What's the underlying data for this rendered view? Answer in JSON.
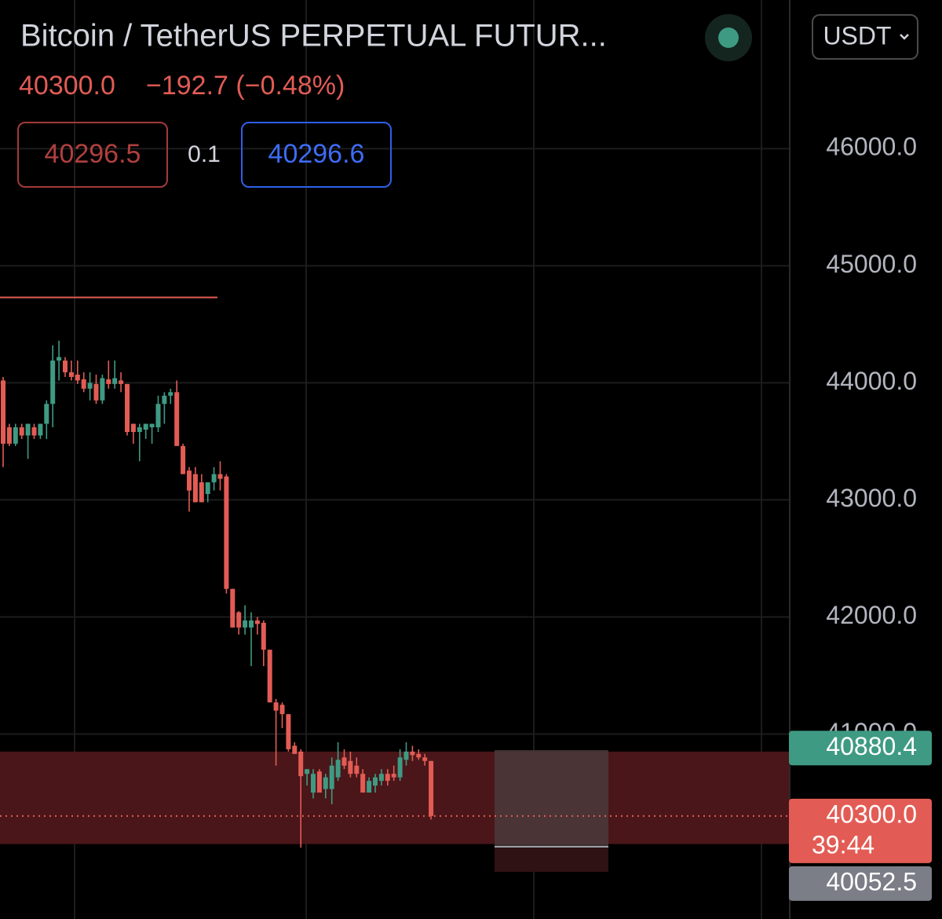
{
  "header": {
    "title": "Bitcoin / TetherUS PERPETUAL FUTUR...",
    "price": "40300.0",
    "change": "−192.7 (−0.48%)",
    "bid": "40296.5",
    "spread": "0.1",
    "ask": "40296.6",
    "currency": "USDT"
  },
  "chart_data": {
    "type": "candlestick",
    "up_color": "#3f9a83",
    "down_color": "#e25c55",
    "open": [
      44020,
      43620,
      43480,
      43620,
      43550,
      43620,
      43550,
      43650,
      43820,
      44190,
      44190,
      44090,
      44070,
      44030,
      43950,
      43990,
      43850,
      44030,
      43990,
      44020,
      43990,
      43650,
      43580,
      43600,
      43620,
      43620,
      43820,
      43890,
      43920,
      43460,
      43250,
      43220,
      43150,
      43050,
      43150,
      43220,
      43200,
      42240,
      42040,
      41910,
      41910,
      41970,
      41950,
      41720,
      41270,
      41250,
      41170,
      40900,
      40850,
      40660,
      40500,
      40680,
      40530,
      40530,
      40630,
      40800,
      40770,
      40730,
      40660,
      40500,
      40560,
      40600,
      40660,
      40660,
      40630,
      40780,
      40850,
      40830,
      40800,
      40770
    ],
    "high": [
      44050,
      43650,
      43650,
      43650,
      43650,
      43650,
      43650,
      43850,
      44320,
      44360,
      44220,
      44190,
      44190,
      44090,
      44090,
      44070,
      44070,
      44190,
      44190,
      44090,
      43990,
      43650,
      43650,
      43650,
      43650,
      43890,
      43920,
      43950,
      44020,
      43480,
      43280,
      43280,
      43220,
      43150,
      43280,
      43330,
      43220,
      42240,
      42050,
      42100,
      42040,
      42000,
      41970,
      41720,
      41300,
      41270,
      41170,
      40930,
      40870,
      40700,
      40700,
      40700,
      40660,
      40800,
      40930,
      40870,
      40850,
      40800,
      40700,
      40630,
      40660,
      40700,
      40700,
      40730,
      40870,
      40930,
      40900,
      40870,
      40830,
      40770
    ],
    "low": [
      43280,
      43460,
      43460,
      43520,
      43350,
      43520,
      43520,
      43520,
      43620,
      44020,
      44050,
      44020,
      43990,
      43920,
      43850,
      43820,
      43820,
      43950,
      43950,
      43920,
      43550,
      43480,
      43330,
      43520,
      43480,
      43580,
      43650,
      43820,
      43480,
      43220,
      42900,
      42980,
      42980,
      42980,
      43080,
      43080,
      42200,
      41910,
      41850,
      41850,
      41580,
      41850,
      41580,
      41270,
      40730,
      41050,
      40850,
      40830,
      40030,
      40560,
      40450,
      40500,
      40450,
      40400,
      40600,
      40700,
      40630,
      40630,
      40530,
      40500,
      40500,
      40560,
      40560,
      40600,
      40600,
      40730,
      40770,
      40780,
      40730,
      40270
    ],
    "close": [
      43480,
      43480,
      43620,
      43550,
      43650,
      43550,
      43650,
      43820,
      44190,
      44220,
      44090,
      44050,
      44020,
      43950,
      44000,
      43850,
      44040,
      43990,
      44040,
      43990,
      43580,
      43580,
      43620,
      43650,
      43650,
      43820,
      43890,
      43920,
      43460,
      43220,
      43080,
      42980,
      42980,
      43150,
      43220,
      43180,
      42240,
      41910,
      41910,
      41970,
      41970,
      41940,
      41720,
      41270,
      41200,
      41170,
      40870,
      40830,
      40640,
      40700,
      40660,
      40500,
      40630,
      40730,
      40780,
      40730,
      40660,
      40660,
      40500,
      40600,
      40630,
      40660,
      40600,
      40630,
      40800,
      40850,
      40820,
      40800,
      40770,
      40300
    ],
    "ylim": [
      39420,
      47270
    ],
    "yticks": [
      {
        "value": 41000,
        "label": "41000.0"
      },
      {
        "value": 42000,
        "label": "42000.0"
      },
      {
        "value": 43000,
        "label": "43000.0"
      },
      {
        "value": 44000,
        "label": "44000.0"
      },
      {
        "value": 45000,
        "label": "45000.0"
      },
      {
        "value": 46000,
        "label": "46000.0"
      }
    ],
    "grid": true,
    "hline": {
      "value": 44730,
      "color": "#e25c55"
    },
    "zone": {
      "top": 40850,
      "bottom": 40060,
      "color": "#4a1619"
    },
    "markers": [
      {
        "value": 40880.4,
        "label": "40880.4",
        "color": "#3f9a83"
      },
      {
        "value": 40300,
        "label": "40300.0",
        "countdown": "39:44",
        "color": "#e25c55"
      },
      {
        "value": 40052.5,
        "label": "40052.5",
        "color": "#7b7e86"
      }
    ]
  }
}
